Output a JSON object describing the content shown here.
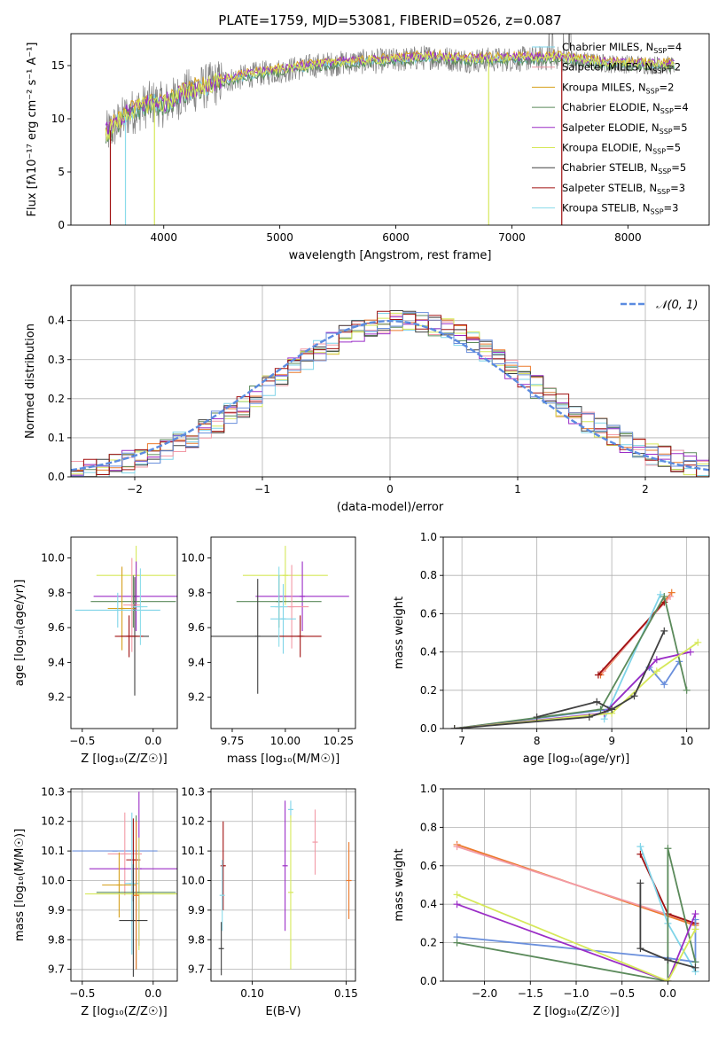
{
  "figure": {
    "title": "PLATE=1759, MJD=53081, FIBERID=0526, z=0.087"
  },
  "colors": {
    "Chabrier MILES": "#7fd4e8",
    "Salpeter MILES": "#f29aa6",
    "Kroupa MILES": "#d6a01c",
    "Chabrier ELODIE": "#5b8a5b",
    "Salpeter ELODIE": "#9b2dc6",
    "Kroupa ELODIE": "#d6e85a",
    "Chabrier STELIB": "#404040",
    "Salpeter STELIB": "#a01010",
    "Kroupa STELIB": "#8adcea",
    "orange": "#ec7a2c",
    "blue": "#6a8fdc",
    "gray": "#808080"
  },
  "chart_data": [
    {
      "id": "spectrum",
      "type": "line",
      "title": "PLATE=1759, MJD=53081, FIBERID=0526, z=0.087",
      "xlabel": "wavelength [Angstrom, rest frame]",
      "ylabel": "Flux [fλ10⁻¹⁷ erg cm⁻² s⁻¹ A⁻¹]",
      "xlim": [
        3200,
        8700
      ],
      "ylim": [
        0,
        18
      ],
      "xticks": [
        4000,
        5000,
        6000,
        7000,
        8000
      ],
      "yticks": [
        0,
        5,
        10,
        15
      ],
      "legend_position": "right",
      "legend": [
        "Chabrier MILES, N_SSP=4",
        "Salpeter MILES, N_SSP=2",
        "Kroupa MILES, N_SSP=2",
        "Chabrier ELODIE, N_SSP=4",
        "Salpeter ELODIE, N_SSP=5",
        "Kroupa ELODIE, N_SSP=5",
        "Chabrier STELIB, N_SSP=5",
        "Salpeter STELIB, N_SSP=3",
        "Kroupa STELIB, N_SSP=3"
      ],
      "continuum": {
        "x": [
          3500,
          3700,
          3900,
          4000,
          4200,
          4500,
          4800,
          5000,
          5300,
          5600,
          6000,
          6300,
          6600,
          7000,
          7400,
          7800,
          8400
        ],
        "y": [
          8.5,
          10.5,
          11.5,
          11.3,
          12.5,
          13.5,
          14.2,
          14.5,
          15.0,
          15.3,
          15.5,
          15.8,
          15.5,
          15.6,
          15.7,
          15.2,
          15.0
        ]
      },
      "dips": [
        {
          "x": 3540,
          "y": 0,
          "series": "Salpeter STELIB"
        },
        {
          "x": 3670,
          "y": 0,
          "series": "Kroupa STELIB"
        },
        {
          "x": 3920,
          "y": 0,
          "series": "Kroupa ELODIE"
        },
        {
          "x": 6800,
          "y": 0,
          "series": "Kroupa ELODIE"
        },
        {
          "x": 7430,
          "y": 0,
          "series": "Salpeter STELIB"
        }
      ]
    },
    {
      "id": "residuals",
      "type": "bar",
      "xlabel": "(data-model)/error",
      "ylabel": "Normed distribution",
      "xlim": [
        -2.5,
        2.5
      ],
      "ylim": [
        0,
        0.49
      ],
      "xticks": [
        -2,
        -1,
        0,
        1,
        2
      ],
      "yticks": [
        0.0,
        0.1,
        0.2,
        0.3,
        0.4
      ],
      "legend": [
        "𝒩(0, 1)"
      ],
      "legend_position": "top-right",
      "bin_width": 0.1
    },
    {
      "id": "age-vs-Z",
      "type": "scatter",
      "xlabel": "Z [log10(Z/Z☉)]",
      "ylabel": "age [log10(age/yr)]",
      "xlim": [
        -0.58,
        0.17
      ],
      "ylim": [
        9.02,
        10.12
      ],
      "xticks": [
        -0.5,
        0.0
      ],
      "yticks": [
        9.2,
        9.4,
        9.6,
        9.8,
        10.0
      ],
      "points": [
        {
          "x": -0.12,
          "y": 9.9,
          "xerr": 0.28,
          "yerr": 0.17,
          "series": "Kroupa ELODIE"
        },
        {
          "x": -0.12,
          "y": 9.78,
          "xerr": 0.3,
          "yerr": 0.2,
          "series": "Salpeter ELODIE"
        },
        {
          "x": -0.14,
          "y": 9.75,
          "xerr": 0.3,
          "yerr": 0.15,
          "series": "Chabrier ELODIE"
        },
        {
          "x": -0.22,
          "y": 9.71,
          "xerr": 0.1,
          "yerr": 0.24,
          "series": "Kroupa MILES"
        },
        {
          "x": -0.25,
          "y": 9.7,
          "xerr": 0.3,
          "yerr": 0.1,
          "series": "Chabrier MILES"
        },
        {
          "x": -0.15,
          "y": 9.73,
          "xerr": 0.06,
          "yerr": 0.27,
          "series": "Salpeter MILES"
        },
        {
          "x": -0.13,
          "y": 9.55,
          "xerr": 0.1,
          "yerr": 0.34,
          "series": "Chabrier STELIB"
        },
        {
          "x": -0.17,
          "y": 9.55,
          "xerr": 0.1,
          "yerr": 0.12,
          "series": "Salpeter STELIB"
        },
        {
          "x": -0.09,
          "y": 9.72,
          "xerr": 0.05,
          "yerr": 0.22,
          "series": "Kroupa STELIB"
        }
      ]
    },
    {
      "id": "age-vs-mass",
      "type": "scatter",
      "xlabel": "mass [log10(M/M☉)]",
      "ylabel": "",
      "xlim": [
        9.65,
        10.33
      ],
      "ylim": [
        9.02,
        10.12
      ],
      "xticks": [
        9.75,
        10.0,
        10.25
      ],
      "yticks": [
        9.2,
        9.4,
        9.6,
        9.8,
        10.0
      ],
      "points": [
        {
          "x": 10.0,
          "y": 9.9,
          "xerr": 0.2,
          "yerr": 0.17,
          "series": "Kroupa ELODIE"
        },
        {
          "x": 10.08,
          "y": 9.78,
          "xerr": 0.22,
          "yerr": 0.2,
          "series": "Salpeter ELODIE"
        },
        {
          "x": 9.97,
          "y": 9.75,
          "xerr": 0.2,
          "yerr": 0.15,
          "series": "Chabrier ELODIE"
        },
        {
          "x": 10.03,
          "y": 9.72,
          "xerr": 0.08,
          "yerr": 0.24,
          "series": "Salpeter MILES"
        },
        {
          "x": 9.99,
          "y": 9.65,
          "xerr": 0.06,
          "yerr": 0.2,
          "series": "Chabrier MILES"
        },
        {
          "x": 9.87,
          "y": 9.55,
          "xerr": 0.22,
          "yerr": 0.33,
          "series": "Chabrier STELIB"
        },
        {
          "x": 10.07,
          "y": 9.55,
          "xerr": 0.1,
          "yerr": 0.12,
          "series": "Salpeter STELIB"
        },
        {
          "x": 9.97,
          "y": 9.72,
          "xerr": 0.04,
          "yerr": 0.23,
          "series": "Kroupa STELIB"
        }
      ]
    },
    {
      "id": "weight-vs-age",
      "type": "line",
      "xlabel": "age  [log10(age/yr)]",
      "ylabel": "mass weight",
      "xlim": [
        6.75,
        10.3
      ],
      "ylim": [
        0,
        1
      ],
      "xticks": [
        7,
        8,
        9,
        10
      ],
      "yticks": [
        0.0,
        0.2,
        0.4,
        0.6,
        0.8,
        1.0
      ],
      "series": [
        {
          "color": "orange",
          "x": [
            8.85,
            9.8
          ],
          "y": [
            0.28,
            0.71
          ]
        },
        {
          "color": "Salpeter MILES",
          "x": [
            8.88,
            9.78
          ],
          "y": [
            0.3,
            0.69
          ]
        },
        {
          "color": "Salpeter STELIB",
          "x": [
            8.82,
            9.7
          ],
          "y": [
            0.28,
            0.66
          ]
        },
        {
          "color": "Chabrier MILES",
          "x": [
            8.9,
            9.65
          ],
          "y": [
            0.05,
            0.7
          ]
        },
        {
          "color": "blue",
          "x": [
            6.9,
            8.95,
            9.5,
            9.7,
            9.9
          ],
          "y": [
            0.0,
            0.1,
            0.32,
            0.23,
            0.35
          ]
        },
        {
          "color": "Chabrier ELODIE",
          "x": [
            6.9,
            8.85,
            9.7,
            10.0
          ],
          "y": [
            0.0,
            0.1,
            0.69,
            0.2
          ]
        },
        {
          "color": "Salpeter ELODIE",
          "x": [
            6.9,
            8.9,
            9.6,
            10.05
          ],
          "y": [
            0.0,
            0.08,
            0.36,
            0.4
          ]
        },
        {
          "color": "Kroupa ELODIE",
          "x": [
            6.9,
            9.0,
            9.6,
            10.15
          ],
          "y": [
            0.0,
            0.08,
            0.3,
            0.45
          ]
        },
        {
          "color": "Chabrier STELIB",
          "x": [
            6.9,
            8.7,
            9.0,
            9.3,
            9.7
          ],
          "y": [
            0.0,
            0.06,
            0.1,
            0.17,
            0.51
          ]
        },
        {
          "color": "Chabrier STELIB",
          "x": [
            8.0,
            8.8,
            9.0
          ],
          "y": [
            0.06,
            0.14,
            0.1
          ]
        }
      ]
    },
    {
      "id": "mass-vs-Z",
      "type": "scatter",
      "xlabel": "Z [log10(Z/Z☉)]",
      "ylabel": "mass [log10(M/M☉)]",
      "xlim": [
        -0.58,
        0.17
      ],
      "ylim": [
        9.66,
        10.31
      ],
      "xticks": [
        -0.5,
        0.0
      ],
      "yticks": [
        9.7,
        9.8,
        9.9,
        10.0,
        10.1,
        10.2,
        10.3
      ],
      "points": [
        {
          "x": -0.27,
          "y": 10.1,
          "xerr": 0.3,
          "yerr": 0.0,
          "series": "blue"
        },
        {
          "x": -0.2,
          "y": 10.09,
          "xerr": 0.12,
          "yerr": 0.14,
          "series": "Salpeter MILES"
        },
        {
          "x": -0.14,
          "y": 10.07,
          "xerr": 0.05,
          "yerr": 0.14,
          "series": "Salpeter STELIB"
        },
        {
          "x": -0.1,
          "y": 10.04,
          "xerr": 0.35,
          "yerr": 0.26,
          "series": "Salpeter ELODIE"
        },
        {
          "x": -0.24,
          "y": 9.985,
          "xerr": 0.12,
          "yerr": 0.11,
          "series": "Kroupa MILES"
        },
        {
          "x": -0.15,
          "y": 9.99,
          "xerr": 0.05,
          "yerr": 0.24,
          "series": "Chabrier MILES"
        },
        {
          "x": -0.1,
          "y": 9.955,
          "xerr": 0.38,
          "yerr": 0.19,
          "series": "Kroupa ELODIE"
        },
        {
          "x": -0.12,
          "y": 9.96,
          "xerr": 0.28,
          "yerr": 0.26,
          "series": "Chabrier ELODIE"
        },
        {
          "x": -0.14,
          "y": 9.865,
          "xerr": 0.1,
          "yerr": 0.19,
          "series": "Chabrier STELIB"
        },
        {
          "x": -0.12,
          "y": 9.95,
          "xerr": 0.02,
          "yerr": 0.25,
          "series": "orange"
        }
      ]
    },
    {
      "id": "mass-vs-ebv",
      "type": "scatter",
      "xlabel": "E(B-V)",
      "ylabel": "",
      "xlim": [
        0.078,
        0.155
      ],
      "ylim": [
        9.66,
        10.31
      ],
      "xticks": [
        0.1,
        0.15
      ],
      "yticks": [
        9.7,
        9.8,
        9.9,
        10.0,
        10.1,
        10.2,
        10.3
      ],
      "points": [
        {
          "x": 0.0845,
          "y": 10.05,
          "xerr": 0,
          "yerr": 0.15,
          "series": "Salpeter STELIB"
        },
        {
          "x": 0.084,
          "y": 9.95,
          "xerr": 0,
          "yerr": 0.12,
          "series": "Kroupa STELIB"
        },
        {
          "x": 0.0835,
          "y": 9.77,
          "xerr": 0,
          "yerr": 0.09,
          "series": "Chabrier STELIB"
        },
        {
          "x": 0.1175,
          "y": 10.05,
          "xerr": 0,
          "yerr": 0.22,
          "series": "Salpeter ELODIE"
        },
        {
          "x": 0.1205,
          "y": 10.24,
          "xerr": 0,
          "yerr": 0.03,
          "series": "Chabrier MILES"
        },
        {
          "x": 0.1205,
          "y": 9.96,
          "xerr": 0,
          "yerr": 0.26,
          "series": "Kroupa ELODIE"
        },
        {
          "x": 0.1335,
          "y": 10.13,
          "xerr": 0,
          "yerr": 0.11,
          "series": "Salpeter MILES"
        },
        {
          "x": 0.1515,
          "y": 10.0,
          "xerr": 0,
          "yerr": 0.13,
          "series": "orange"
        }
      ]
    },
    {
      "id": "weight-vs-Z",
      "type": "line",
      "xlabel": "Z [log10(Z/Z☉)]",
      "ylabel": "mass weight",
      "xlim": [
        -2.45,
        0.45
      ],
      "ylim": [
        0,
        1
      ],
      "xticks": [
        -2.0,
        -1.5,
        -1.0,
        -0.5,
        0.0
      ],
      "yticks": [
        0.0,
        0.2,
        0.4,
        0.6,
        0.8,
        1.0
      ],
      "series": [
        {
          "color": "orange",
          "x": [
            -2.3,
            0.3
          ],
          "y": [
            0.71,
            0.29
          ]
        },
        {
          "color": "Salpeter MILES",
          "x": [
            -2.3,
            0.3
          ],
          "y": [
            0.7,
            0.3
          ]
        },
        {
          "color": "Salpeter STELIB",
          "x": [
            -0.3,
            0.0,
            0.3
          ],
          "y": [
            0.66,
            0.35,
            0.3
          ]
        },
        {
          "color": "Chabrier MILES",
          "x": [
            -0.3,
            0.0,
            0.3
          ],
          "y": [
            0.7,
            0.3,
            0.05
          ]
        },
        {
          "color": "blue",
          "x": [
            -2.3,
            0.0,
            0.3,
            0.3
          ],
          "y": [
            0.23,
            0.12,
            0.1,
            0.32
          ]
        },
        {
          "color": "Chabrier ELODIE",
          "x": [
            -2.3,
            0.0,
            0.0,
            0.3
          ],
          "y": [
            0.2,
            0.0,
            0.69,
            0.1
          ]
        },
        {
          "color": "Salpeter ELODIE",
          "x": [
            -2.3,
            0.0,
            0.3
          ],
          "y": [
            0.4,
            0.0,
            0.35
          ]
        },
        {
          "color": "Kroupa ELODIE",
          "x": [
            -2.3,
            0.0,
            0.3
          ],
          "y": [
            0.45,
            0.0,
            0.27
          ]
        },
        {
          "color": "Chabrier STELIB",
          "x": [
            -0.3,
            -0.3,
            0.0,
            0.3
          ],
          "y": [
            0.51,
            0.17,
            0.11,
            0.07
          ]
        }
      ]
    }
  ]
}
